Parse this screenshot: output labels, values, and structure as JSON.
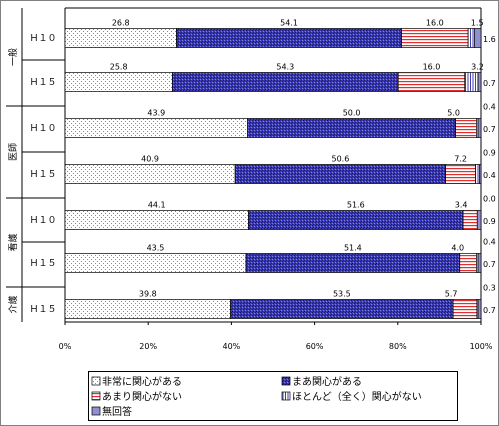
{
  "chart_data": {
    "type": "bar",
    "orientation": "horizontal",
    "stacked": true,
    "title": "",
    "xlabel": "",
    "ylabel": "",
    "xlim": [
      0,
      100
    ],
    "x_ticks": [
      "0%",
      "20%",
      "40%",
      "60%",
      "80%",
      "100%"
    ],
    "grid": false,
    "legend_position": "bottom",
    "groups": [
      {
        "name": "一般",
        "rows": [
          0,
          1
        ]
      },
      {
        "name": "医師",
        "rows": [
          2,
          3
        ]
      },
      {
        "name": "看護",
        "rows": [
          4,
          5
        ]
      },
      {
        "name": "介護",
        "rows": [
          6
        ]
      }
    ],
    "categories": [
      "Ｈ１０",
      "Ｈ１５",
      "Ｈ１０",
      "Ｈ１５",
      "Ｈ１０",
      "Ｈ１５",
      "Ｈ１５"
    ],
    "series": [
      {
        "name": "非常に関心がある",
        "color": "#ffffff",
        "pattern": "dots",
        "values": [
          26.8,
          25.8,
          43.9,
          40.9,
          44.1,
          43.5,
          39.8
        ],
        "labels": [
          "26.8",
          "25.8",
          "43.9",
          "40.9",
          "44.1",
          "43.5",
          "39.8"
        ]
      },
      {
        "name": "まあ関心がある",
        "color": "#3a3ab0",
        "pattern": "crosshatch",
        "values": [
          54.1,
          54.3,
          50.0,
          50.6,
          51.6,
          51.4,
          53.5
        ],
        "labels": [
          "54.1",
          "54.3",
          "50.0",
          "50.6",
          "51.6",
          "51.4",
          "53.5"
        ]
      },
      {
        "name": "あまり関心がない",
        "color": "#d94040",
        "pattern": "hlines",
        "values": [
          16.0,
          16.0,
          5.0,
          7.2,
          3.4,
          4.0,
          5.7
        ],
        "labels": [
          "16.0",
          "16.0",
          "5.0",
          "7.2",
          "3.4",
          "4.0",
          "5.7"
        ]
      },
      {
        "name": "ほとんど（全く）関心がない",
        "color": "#5050b0",
        "pattern": "vlines",
        "values": [
          1.5,
          3.2,
          0.4,
          0.9,
          0.0,
          0.4,
          0.3
        ],
        "labels": [
          "1.5",
          "3.2",
          "0.4",
          "0.9",
          "0.0",
          "0.4",
          "0.3"
        ]
      },
      {
        "name": "無回答",
        "color": "#9090d0",
        "pattern": "solid",
        "values": [
          1.6,
          0.7,
          0.7,
          0.4,
          0.9,
          0.7,
          0.7
        ],
        "labels": [
          "1.6",
          "0.7",
          "0.7",
          "0.4",
          "0.9",
          "0.7",
          "0.7"
        ]
      }
    ],
    "legend": [
      {
        "label": "□非常に関心がある",
        "series": 0
      },
      {
        "label": "■まあ関心がある",
        "series": 1
      },
      {
        "label": "□あまり関心がない",
        "series": 2
      },
      {
        "label": "□ほとんど（全く）関心がない",
        "series": 3
      },
      {
        "label": "■無回答",
        "series": 4
      }
    ]
  }
}
